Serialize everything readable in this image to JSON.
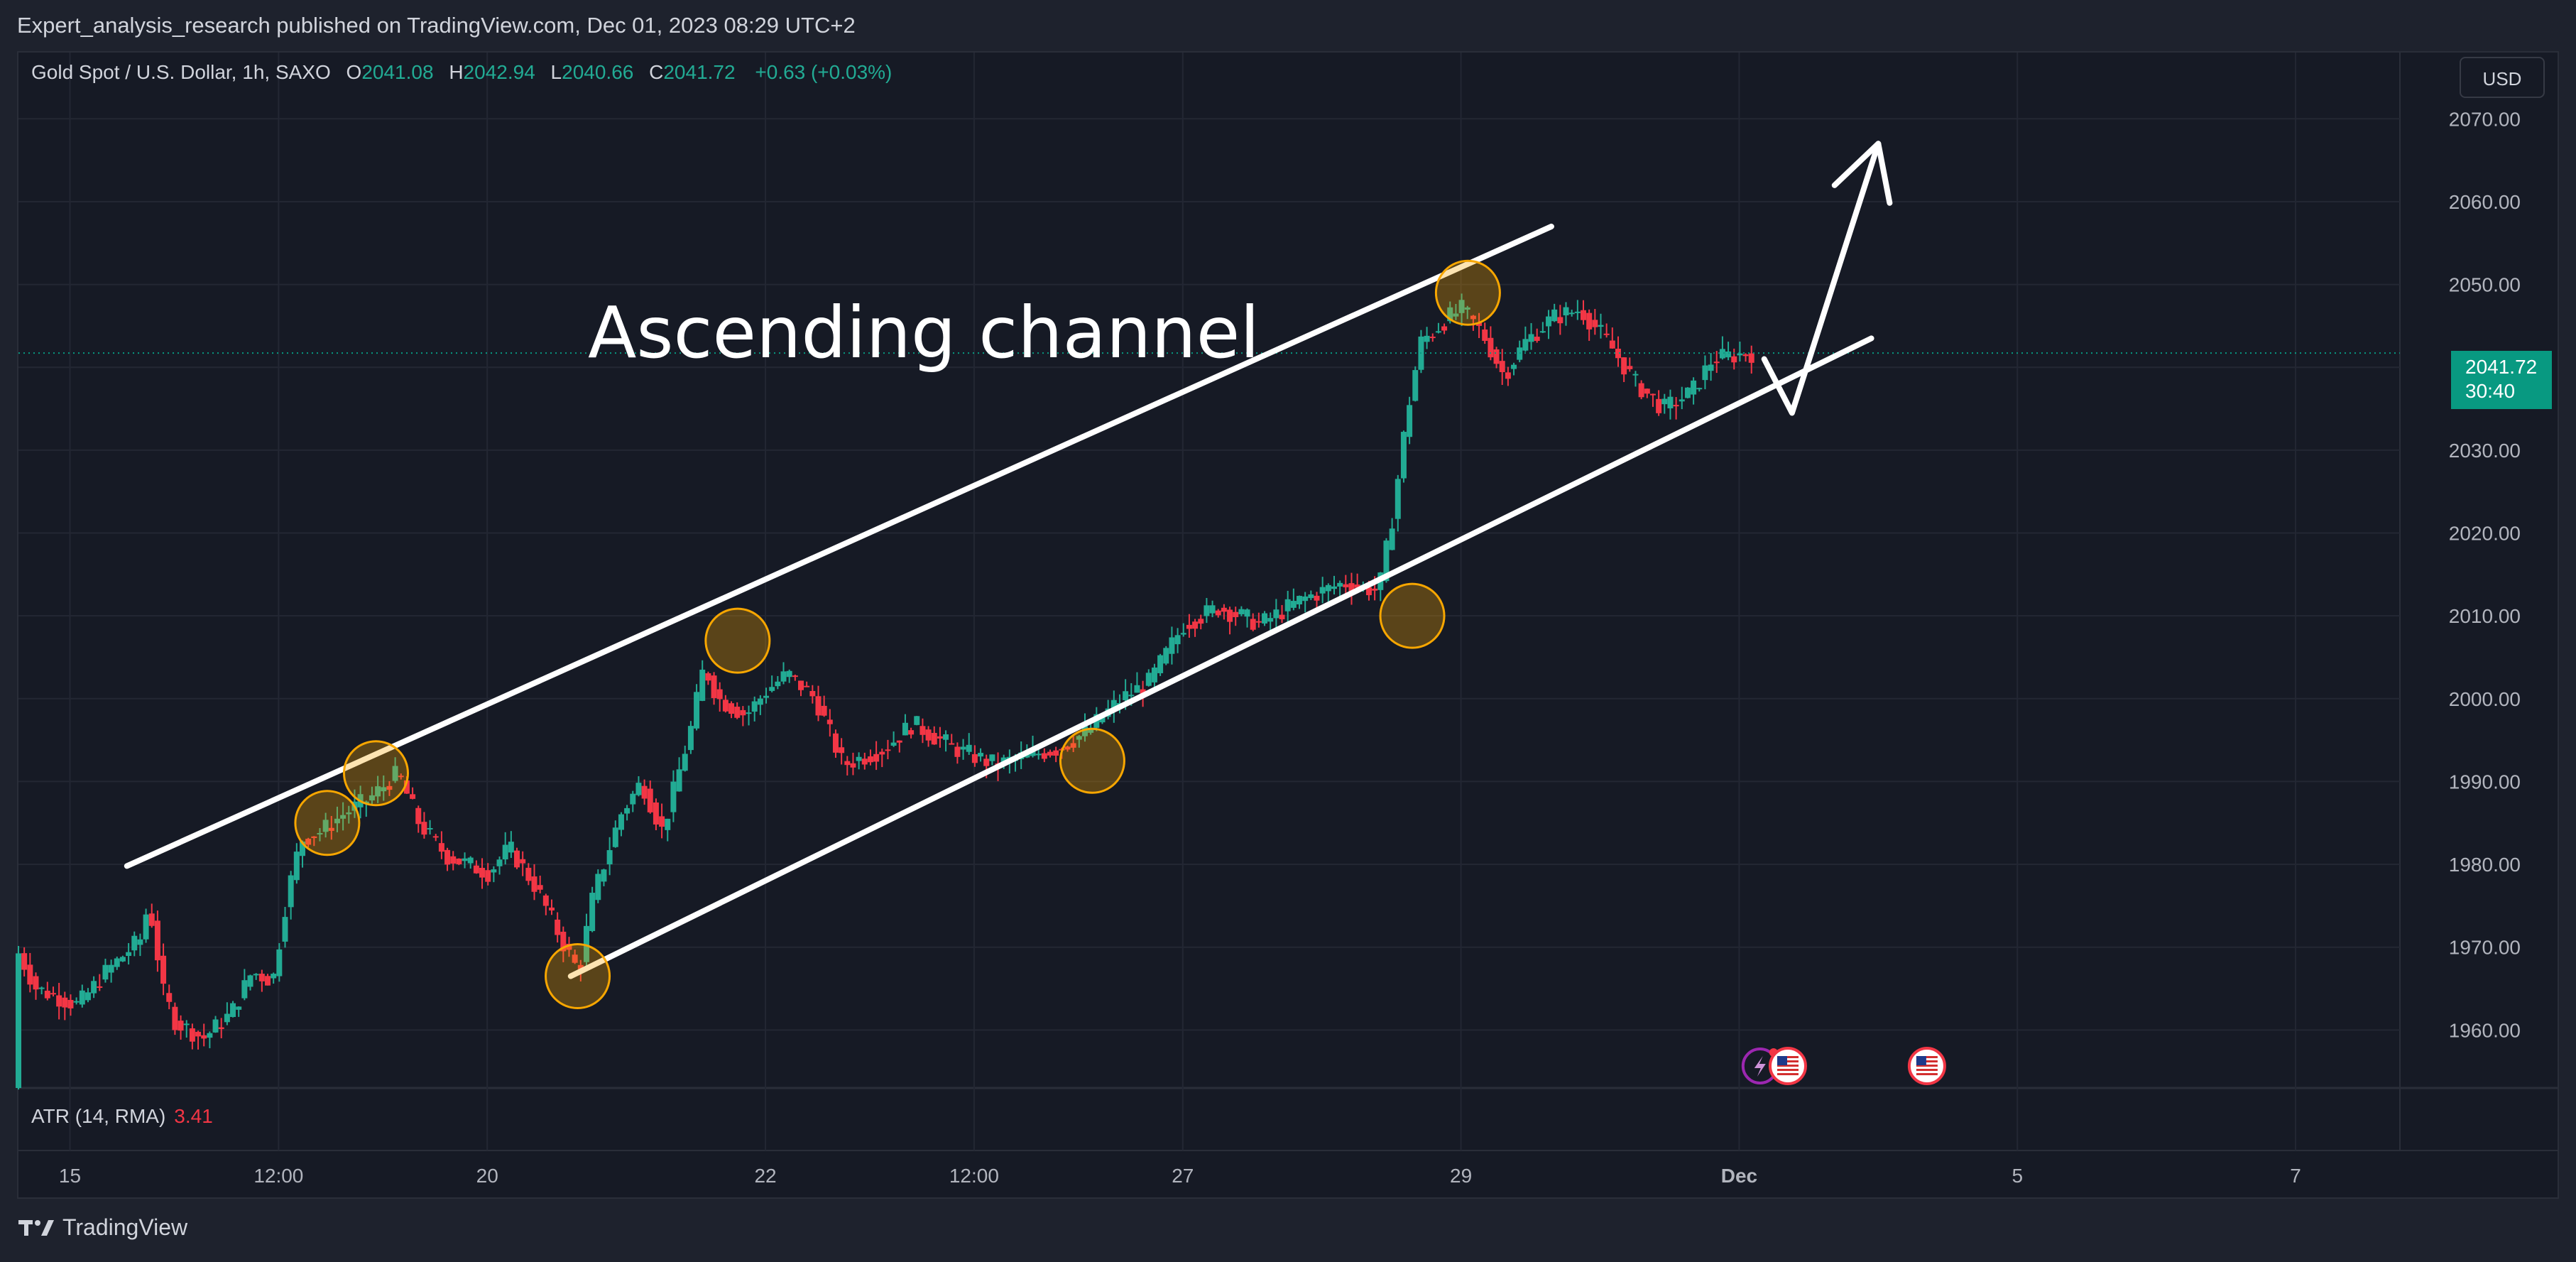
{
  "publish_info": "Expert_analysis_research published on TradingView.com, Dec 01, 2023 08:29 UTC+2",
  "legend": {
    "symbol": "Gold Spot / U.S. Dollar, 1h, SAXO",
    "open_label": "O",
    "open": "2041.08",
    "high_label": "H",
    "high": "2042.94",
    "low_label": "L",
    "low": "2040.66",
    "close_label": "C",
    "close": "2041.72",
    "change": "+0.63 (+0.03%)"
  },
  "currency": "USD",
  "last_price": {
    "price": "2041.72",
    "countdown": "30:40"
  },
  "indicator": {
    "label": "ATR (14, RMA)",
    "value": "3.41"
  },
  "brand": "TradingView",
  "annotation": "Ascending channel",
  "colors": {
    "up": "#22ab94",
    "down": "#f23645",
    "price_line": "#089981",
    "marker": "#f7a600",
    "drawing": "#ffffff"
  },
  "chart_data": {
    "type": "candlestick",
    "symbol": "XAUUSD",
    "timeframe": "1h",
    "y_ticks": [
      1960,
      1970,
      1980,
      1990,
      2000,
      2010,
      2020,
      2030,
      2040,
      2050,
      2060,
      2070
    ],
    "y_tick_labels": [
      "1960.00",
      "1970.00",
      "1980.00",
      "1990.00",
      "2000.00",
      "2010.00",
      "2020.00",
      "2030.00",
      "2040.00",
      "2050.00",
      "2060.00",
      "2070.00"
    ],
    "ylim": [
      1953,
      2078
    ],
    "x_ticks": [
      {
        "label": "15",
        "t": 0.0
      },
      {
        "label": "12:00",
        "t": 1.5
      },
      {
        "label": "20",
        "t": 3.0
      },
      {
        "label": "22",
        "t": 5.0
      },
      {
        "label": "12:00",
        "t": 6.5
      },
      {
        "label": "27",
        "t": 8.0
      },
      {
        "label": "29",
        "t": 10.0
      },
      {
        "label": "Dec",
        "t": 12.0
      },
      {
        "label": "5",
        "t": 14.0
      },
      {
        "label": "7",
        "t": 16.0
      }
    ],
    "xlim": [
      -0.37,
      16.75
    ],
    "price_path": [
      [
        -0.37,
        1953
      ],
      [
        -0.35,
        1970
      ],
      [
        -0.2,
        1965
      ],
      [
        0.1,
        1963
      ],
      [
        0.3,
        1967
      ],
      [
        0.55,
        1971
      ],
      [
        0.6,
        1975
      ],
      [
        0.65,
        1972
      ],
      [
        0.7,
        1965
      ],
      [
        0.8,
        1961
      ],
      [
        1.0,
        1959
      ],
      [
        1.2,
        1962
      ],
      [
        1.35,
        1967
      ],
      [
        1.5,
        1966
      ],
      [
        1.6,
        1976
      ],
      [
        1.7,
        1983
      ],
      [
        1.85,
        1984
      ],
      [
        2.0,
        1986
      ],
      [
        2.2,
        1988
      ],
      [
        2.4,
        1991
      ],
      [
        2.55,
        1985
      ],
      [
        2.75,
        1981
      ],
      [
        3.05,
        1979
      ],
      [
        3.2,
        1982
      ],
      [
        3.4,
        1977
      ],
      [
        3.6,
        1970
      ],
      [
        3.7,
        1967
      ],
      [
        3.8,
        1976
      ],
      [
        4.0,
        1986
      ],
      [
        4.15,
        1990
      ],
      [
        4.3,
        1984
      ],
      [
        4.5,
        1996
      ],
      [
        4.6,
        2004
      ],
      [
        4.7,
        2000
      ],
      [
        4.9,
        1998
      ],
      [
        5.05,
        2001
      ],
      [
        5.2,
        2003
      ],
      [
        5.4,
        2000
      ],
      [
        5.6,
        1992
      ],
      [
        5.9,
        1994
      ],
      [
        6.1,
        1997
      ],
      [
        6.4,
        1994
      ],
      [
        6.7,
        1992
      ],
      [
        6.9,
        1993
      ],
      [
        7.15,
        1994
      ],
      [
        7.35,
        1996
      ],
      [
        7.6,
        2000
      ],
      [
        7.8,
        2002
      ],
      [
        8.05,
        2009
      ],
      [
        8.3,
        2011
      ],
      [
        8.6,
        2009
      ],
      [
        8.9,
        2012
      ],
      [
        9.2,
        2014
      ],
      [
        9.45,
        2013
      ],
      [
        9.55,
        2022
      ],
      [
        9.65,
        2034
      ],
      [
        9.75,
        2043
      ],
      [
        9.95,
        2046
      ],
      [
        10.05,
        2047
      ],
      [
        10.2,
        2044
      ],
      [
        10.35,
        2039
      ],
      [
        10.5,
        2043
      ],
      [
        10.7,
        2046
      ],
      [
        10.9,
        2047
      ],
      [
        11.1,
        2043
      ],
      [
        11.3,
        2038
      ],
      [
        11.5,
        2035
      ],
      [
        11.7,
        2037
      ],
      [
        11.85,
        2041
      ],
      [
        12.1,
        2041.72
      ]
    ],
    "channel": {
      "upper": {
        "from": [
          0.41,
          1979.8
        ],
        "to": [
          10.65,
          2057
        ]
      },
      "lower": {
        "from": [
          3.6,
          1966.5
        ],
        "to": [
          12.95,
          2043.5
        ]
      }
    },
    "touch_points": [
      [
        1.85,
        1985
      ],
      [
        2.2,
        1991
      ],
      [
        4.8,
        2007
      ],
      [
        3.65,
        1966.5
      ],
      [
        7.35,
        1992.5
      ],
      [
        9.65,
        2010
      ],
      [
        10.05,
        2049
      ]
    ],
    "projection": [
      [
        12.18,
        2041
      ],
      [
        12.38,
        2034.5
      ],
      [
        13.0,
        2067
      ]
    ],
    "last_price": 2041.72,
    "atr": 3.41,
    "event_marker_t": [
      12.15,
      12.35,
      13.35
    ]
  }
}
